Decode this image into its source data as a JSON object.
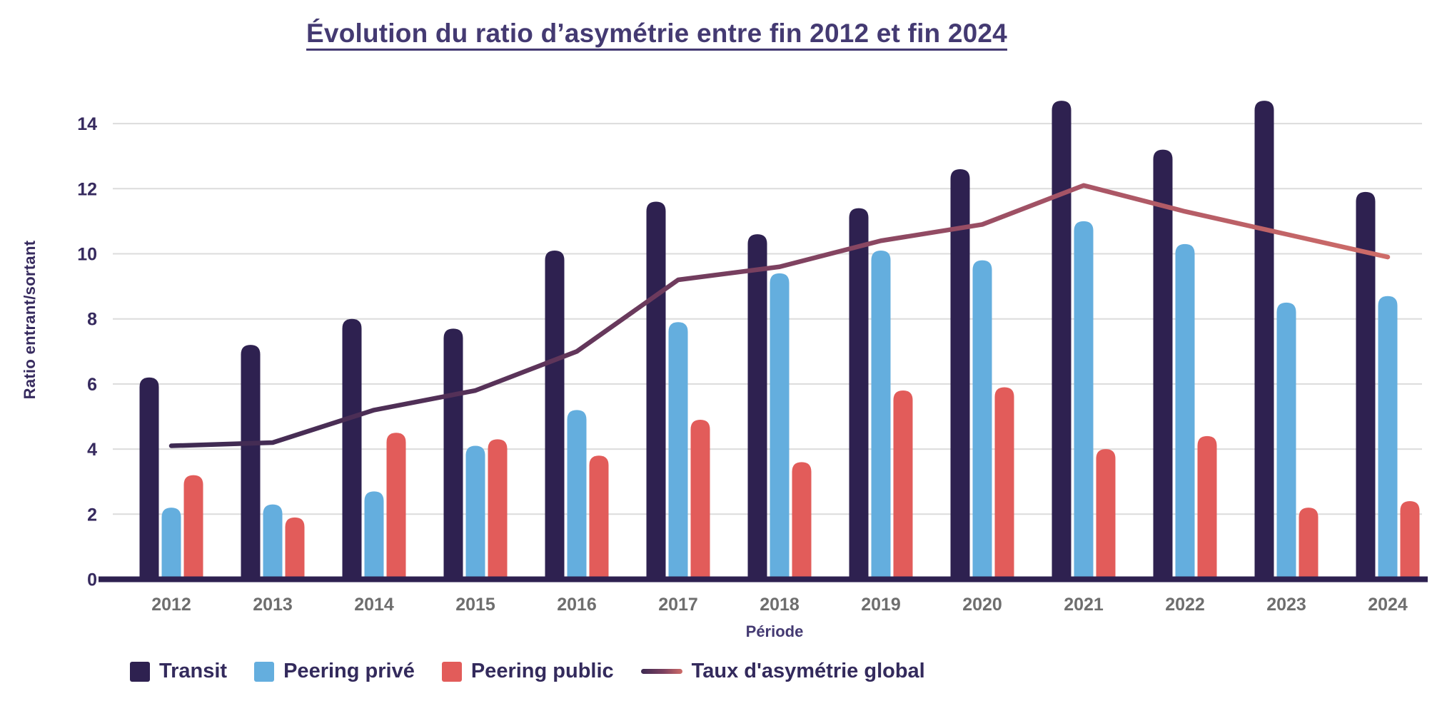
{
  "title": "Évolution du ratio d’asymétrie entre fin 2012 et fin 2024",
  "axes": {
    "y_title": "Ratio entrant/sortant",
    "x_title": "Période"
  },
  "legend": {
    "items": [
      {
        "label": "Transit",
        "swatch": "square",
        "color": "#2e2150"
      },
      {
        "label": "Peering privé",
        "swatch": "square",
        "color": "#64aede"
      },
      {
        "label": "Peering public",
        "swatch": "square",
        "color": "#e25c5a"
      },
      {
        "label": "Taux d'asymétrie global",
        "swatch": "line",
        "gradient": [
          "#3d2a52",
          "#7d4160",
          "#cf6c68"
        ]
      }
    ]
  },
  "palette": {
    "title_text": "#443a72",
    "axis_text": "#362a5e",
    "year_text": "#6e6e6e",
    "gridline": "#dcdcdc",
    "baseline": "#2e2150",
    "background": "#ffffff"
  },
  "chart_data": {
    "type": "bar",
    "subtype": "grouped bars with overlay line",
    "title": "Évolution du ratio d’asymétrie entre fin 2012 et fin 2024",
    "xlabel": "Période",
    "ylabel": "Ratio entrant/sortant",
    "categories": [
      "2012",
      "2013",
      "2014",
      "2015",
      "2016",
      "2017",
      "2018",
      "2019",
      "2020",
      "2021",
      "2022",
      "2023",
      "2024"
    ],
    "ylim": [
      0,
      14
    ],
    "ytick_step": 2,
    "yticks": [
      0,
      2,
      4,
      6,
      8,
      10,
      12,
      14
    ],
    "grid": true,
    "legend_position": "bottom",
    "series": [
      {
        "name": "Transit",
        "type": "bar",
        "color": "#2e2150",
        "values": [
          6.2,
          7.2,
          8.0,
          7.7,
          10.1,
          11.6,
          10.6,
          11.4,
          12.6,
          14.7,
          13.2,
          14.7,
          11.9
        ]
      },
      {
        "name": "Peering privé",
        "type": "bar",
        "color": "#64aede",
        "values": [
          2.2,
          2.3,
          2.7,
          4.1,
          5.2,
          7.9,
          9.4,
          10.1,
          9.8,
          11.0,
          10.3,
          8.5,
          8.7
        ]
      },
      {
        "name": "Peering public",
        "type": "bar",
        "color": "#e25c5a",
        "values": [
          3.2,
          1.9,
          4.5,
          4.3,
          3.8,
          4.9,
          3.6,
          5.8,
          5.9,
          4.0,
          4.4,
          2.2,
          2.4
        ]
      },
      {
        "name": "Taux d'asymétrie global",
        "type": "line",
        "gradient": [
          "#3d2a52",
          "#553158",
          "#7d4160",
          "#a85566",
          "#cf6c68"
        ],
        "values": [
          4.1,
          4.2,
          5.2,
          5.8,
          7.0,
          9.2,
          9.6,
          10.4,
          10.9,
          12.1,
          11.3,
          10.6,
          9.9
        ]
      }
    ]
  }
}
